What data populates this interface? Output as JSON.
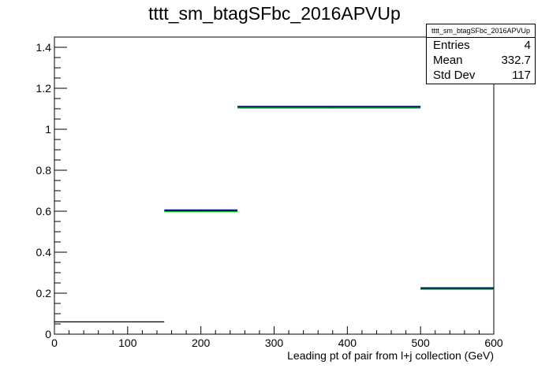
{
  "title": "tttt_sm_btagSFbc_2016APVUp",
  "stats": {
    "name": "tttt_sm_btagSFbc_2016APVUp",
    "rows": [
      {
        "label": "Entries",
        "value": "4"
      },
      {
        "label": "Mean",
        "value": "332.7"
      },
      {
        "label": "Std Dev",
        "value": "117"
      }
    ]
  },
  "chart_data": {
    "type": "bar",
    "title": "tttt_sm_btagSFbc_2016APVUp",
    "xlabel": "Leading pt of pair from l+j collection (GeV)",
    "ylabel": "",
    "xlim": [
      0,
      600
    ],
    "ylim": [
      0,
      1.45
    ],
    "x_ticks": [
      0,
      100,
      200,
      300,
      400,
      500,
      600
    ],
    "x_tick_labels": [
      "0",
      "100",
      "200",
      "300",
      "400",
      "500",
      "600"
    ],
    "y_ticks": [
      0,
      0.2,
      0.4,
      0.6,
      0.8,
      1,
      1.2,
      1.4
    ],
    "y_tick_labels": [
      "0",
      "0.2",
      "0.4",
      "0.6",
      "0.8",
      "1",
      "1.2",
      "1.4"
    ],
    "grid": false,
    "legend": "stats box top-right",
    "bins": [
      {
        "xlow": 0,
        "xhigh": 150,
        "y": 0.06
      },
      {
        "xlow": 150,
        "xhigh": 250,
        "y": 0.605
      },
      {
        "xlow": 250,
        "xhigh": 500,
        "y": 1.11
      },
      {
        "xlow": 500,
        "xhigh": 600,
        "y": 0.225
      }
    ],
    "colors": {
      "histogram": "#000000",
      "band": "#00cc00",
      "outline": "#000080"
    }
  }
}
